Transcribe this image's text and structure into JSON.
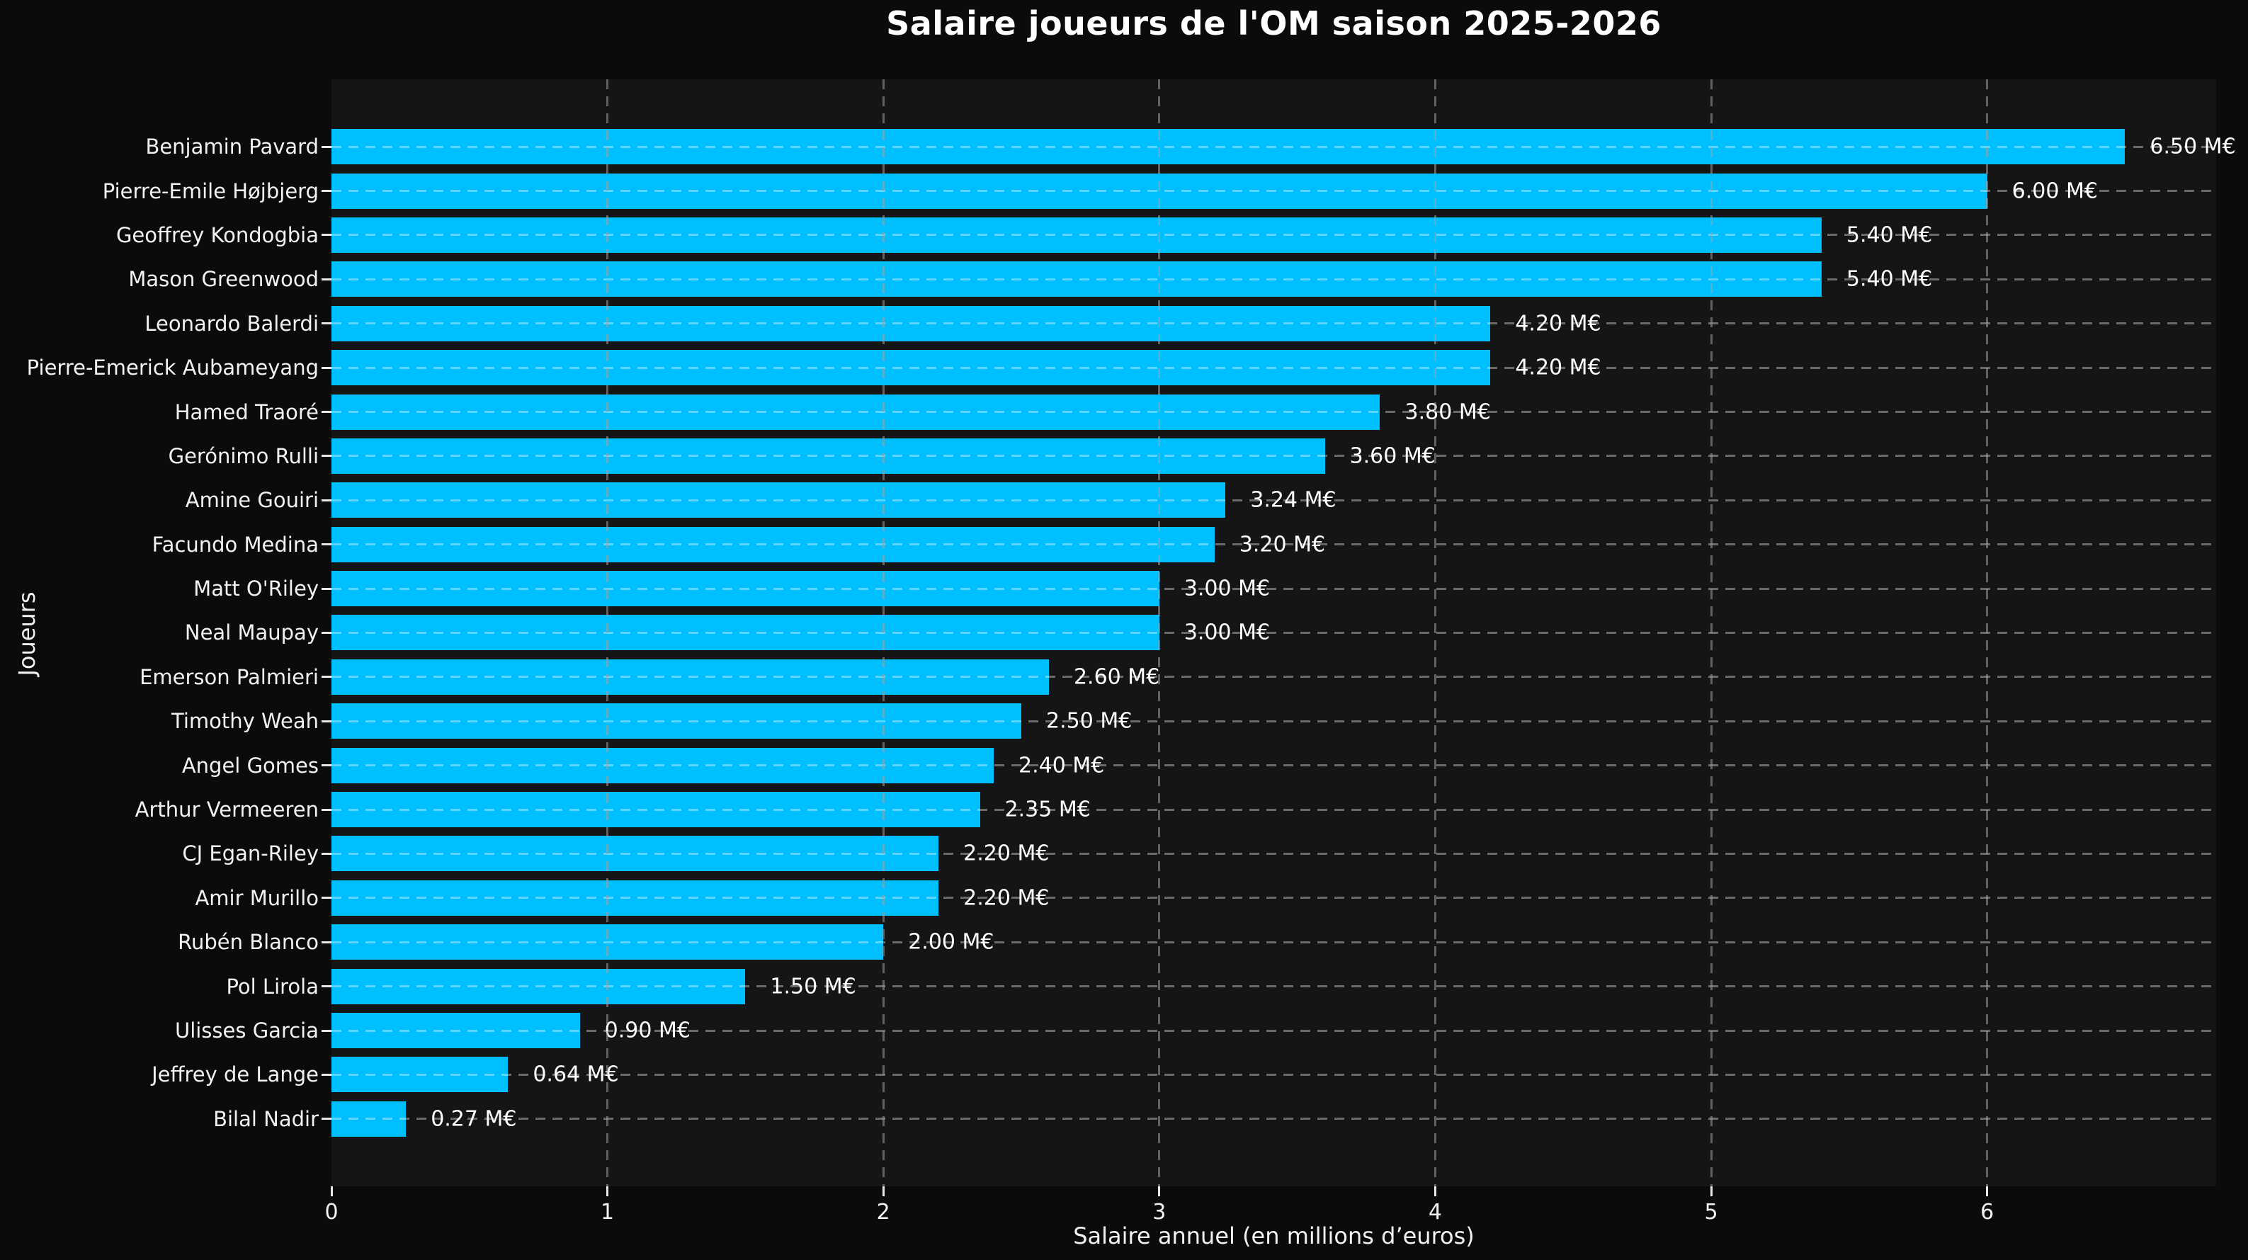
{
  "title": "Salaire joueurs de l'OM saison 2025-2026",
  "colors": {
    "figure_background": "#0b0b0b",
    "plot_background": "#151515",
    "bar": "#00bfff",
    "text": "#ffffff",
    "grid_horizontal": "rgba(255,255,255,0.36)",
    "grid_vertical": "rgba(160,160,160,0.55)"
  },
  "chart_data": {
    "type": "bar",
    "orientation": "horizontal",
    "title": "Salaire joueurs de l'OM saison 2025-2026",
    "xlabel": "Salaire annuel (en millions d’euros)",
    "ylabel": "Joueurs",
    "xlim": [
      0,
      6.83
    ],
    "xticks": [
      0,
      1,
      2,
      3,
      4,
      5,
      6
    ],
    "grid": "dashed, both axes, drawn above bars",
    "legend": "none",
    "bar_color": "#00bfff",
    "categories": [
      "Benjamin Pavard",
      "Pierre-Emile Højbjerg",
      "Geoffrey Kondogbia",
      "Mason Greenwood",
      "Leonardo Balerdi",
      "Pierre-Emerick Aubameyang",
      "Hamed Traoré",
      "Gerónimo Rulli",
      "Amine Gouiri",
      "Facundo Medina",
      "Matt O'Riley",
      "Neal Maupay",
      "Emerson Palmieri",
      "Timothy Weah",
      "Angel Gomes",
      "Arthur Vermeeren",
      "CJ Egan-Riley",
      "Amir Murillo",
      "Rubén Blanco",
      "Pol Lirola",
      "Ulisses Garcia",
      "Jeffrey de Lange",
      "Bilal Nadir"
    ],
    "values": [
      6.5,
      6.0,
      5.4,
      5.4,
      4.2,
      4.2,
      3.8,
      3.6,
      3.24,
      3.2,
      3.0,
      3.0,
      2.6,
      2.5,
      2.4,
      2.35,
      2.2,
      2.2,
      2.0,
      1.5,
      0.9,
      0.64,
      0.27
    ],
    "value_labels": [
      "6.50 M€",
      "6.00 M€",
      "5.40 M€",
      "5.40 M€",
      "4.20 M€",
      "4.20 M€",
      "3.80 M€",
      "3.60 M€",
      "3.24 M€",
      "3.20 M€",
      "3.00 M€",
      "3.00 M€",
      "2.60 M€",
      "2.50 M€",
      "2.40 M€",
      "2.35 M€",
      "2.20 M€",
      "2.20 M€",
      "2.00 M€",
      "1.50 M€",
      "0.90 M€",
      "0.64 M€",
      "0.27 M€"
    ]
  }
}
